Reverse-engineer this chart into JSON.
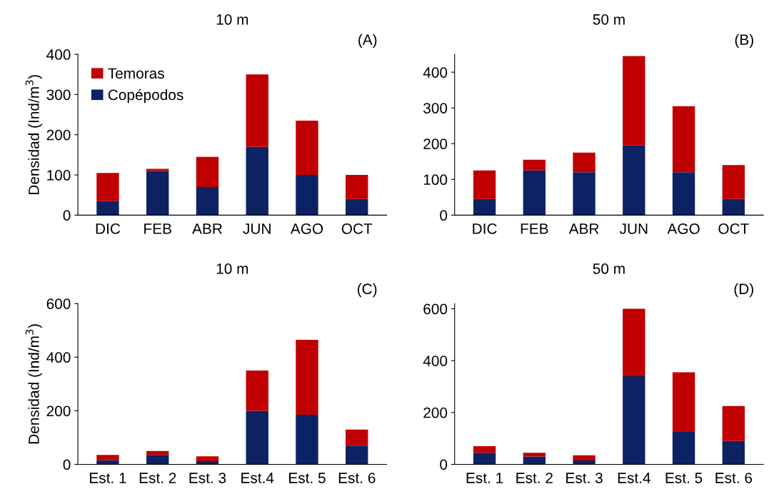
{
  "chart_data": [
    {
      "type": "bar",
      "title": "10 m",
      "ylabel": "Densidad (Ind/m$^{3}$)",
      "annotations": [
        "(A)"
      ],
      "categories": [
        "DIC",
        "FEB",
        "ABR",
        "JUN",
        "AGO",
        "OCT"
      ],
      "stacked": true,
      "ylim": [
        0,
        400
      ],
      "yticks": [
        0,
        100,
        200,
        300,
        400
      ],
      "legend": "top left",
      "series": [
        {
          "name": "Copépodos",
          "color": "#0d2263",
          "values": [
            35,
            110,
            70,
            170,
            100,
            40
          ]
        },
        {
          "name": "Temoras",
          "color": "#c00000",
          "values": [
            70,
            5,
            75,
            180,
            135,
            60
          ]
        }
      ]
    },
    {
      "type": "bar",
      "title": "50 m",
      "annotations": [
        "(B)"
      ],
      "categories": [
        "DIC",
        "FEB",
        "ABR",
        "JUN",
        "AGO",
        "OCT"
      ],
      "stacked": true,
      "ylim": [
        0,
        450
      ],
      "yticks": [
        0,
        100,
        200,
        300,
        400
      ],
      "series": [
        {
          "color": "#0d2263",
          "values": [
            45,
            125,
            120,
            195,
            120,
            45
          ]
        },
        {
          "color": "#c00000",
          "values": [
            80,
            30,
            55,
            250,
            185,
            95
          ]
        }
      ]
    },
    {
      "type": "bar",
      "title": "10 m",
      "ylabel": "Densidad (Ind/m$^{3}$)",
      "annotations": [
        "(C)"
      ],
      "categories": [
        "Est. 1",
        "Est. 2",
        "Est. 3",
        "Est.4",
        "Est. 5",
        "Est. 6"
      ],
      "stacked": true,
      "ylim": [
        0,
        600
      ],
      "yticks": [
        0,
        200,
        400,
        600
      ],
      "series": [
        {
          "color": "#0d2263",
          "values": [
            15,
            35,
            12,
            200,
            185,
            70
          ]
        },
        {
          "color": "#c00000",
          "values": [
            20,
            15,
            18,
            150,
            280,
            60
          ]
        }
      ]
    },
    {
      "type": "bar",
      "title": "50 m",
      "annotations": [
        "(D)"
      ],
      "categories": [
        "Est. 1",
        "Est. 2",
        "Est. 3",
        "Est.4",
        "Est. 5",
        "Est. 6"
      ],
      "stacked": true,
      "ylim": [
        0,
        620
      ],
      "yticks": [
        0,
        200,
        400,
        600
      ],
      "series": [
        {
          "color": "#0d2263",
          "values": [
            45,
            30,
            15,
            340,
            125,
            90
          ]
        },
        {
          "color": "#c00000",
          "values": [
            25,
            15,
            20,
            260,
            230,
            135
          ]
        }
      ]
    }
  ]
}
